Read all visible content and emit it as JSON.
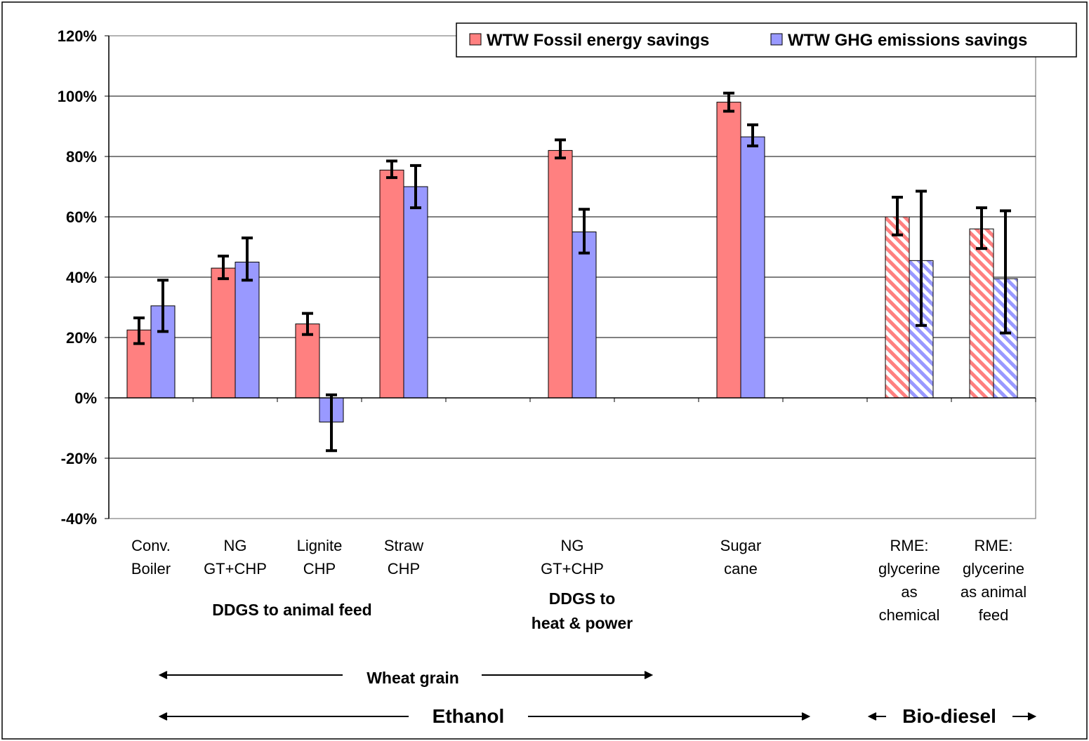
{
  "chart_data": {
    "type": "bar",
    "ylim": [
      -40,
      120
    ],
    "y_ticks": [
      "120%",
      "100%",
      "80%",
      "60%",
      "40%",
      "20%",
      "0%",
      "-20%",
      "-40%"
    ],
    "grid": "horizontal",
    "legend_position": "top-right",
    "categories": [
      [
        "Conv.",
        "Boiler"
      ],
      [
        "NG",
        "GT+CHP"
      ],
      [
        "Lignite",
        "CHP"
      ],
      [
        "Straw",
        "CHP"
      ],
      [],
      [
        "NG",
        "GT+CHP"
      ],
      [],
      [
        "Sugar",
        "cane"
      ],
      [],
      [
        "RME:",
        "glycerine",
        "as",
        "chemical"
      ],
      [
        "RME:",
        "glycerine",
        "as animal",
        "feed"
      ]
    ],
    "series": [
      {
        "name": "WTW Fossil energy savings",
        "color": "#ff8080",
        "values": [
          22.5,
          43,
          24.5,
          75.5,
          null,
          82,
          null,
          98,
          null,
          60,
          56
        ],
        "err_low": [
          18,
          39.5,
          21,
          73,
          null,
          79.5,
          null,
          95,
          null,
          54,
          49.5
        ],
        "err_high": [
          26.5,
          47,
          28,
          78.5,
          null,
          85.5,
          null,
          101,
          null,
          66.5,
          63
        ],
        "hatched": [
          false,
          false,
          false,
          false,
          false,
          false,
          false,
          false,
          false,
          true,
          true
        ]
      },
      {
        "name": "WTW GHG emissions savings",
        "color": "#9999ff",
        "values": [
          30.5,
          45,
          -8,
          70,
          null,
          55,
          null,
          86.5,
          null,
          45.5,
          39.5
        ],
        "err_low": [
          22,
          39,
          -17.5,
          63,
          null,
          48,
          null,
          83.5,
          null,
          24,
          21.5
        ],
        "err_high": [
          39,
          53,
          1,
          77,
          null,
          62.5,
          null,
          90.5,
          null,
          68.5,
          62
        ],
        "hatched": [
          false,
          false,
          false,
          false,
          false,
          false,
          false,
          false,
          false,
          true,
          true
        ]
      }
    ],
    "group_labels": {
      "animal_feed": "DDGS to animal feed",
      "heat_power": [
        "DDGS to",
        "heat & power"
      ],
      "wheat": "Wheat grain",
      "ethanol": "Ethanol",
      "biodiesel": "Bio-diesel"
    }
  }
}
